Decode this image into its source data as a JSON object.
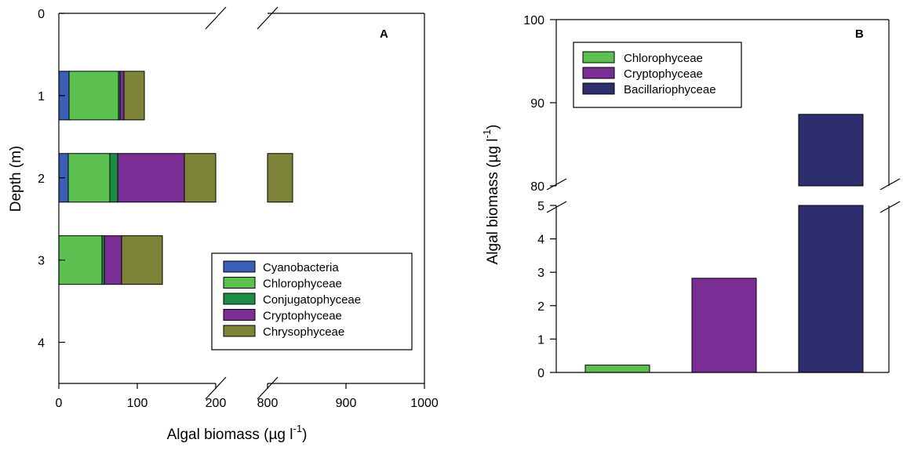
{
  "chart_data": [
    {
      "type": "bar",
      "orientation": "horizontal-stacked",
      "panel_letter": "A",
      "xlabel": "Algal biomass (µg l",
      "xlabel_superscript": "-1",
      "xlabel_suffix": ")",
      "ylabel": "Depth (m)",
      "ylim": [
        0,
        4.5
      ],
      "y_ticks": [
        "0",
        "1",
        "2",
        "3",
        "4"
      ],
      "x_axis_break": {
        "lower_range": [
          0,
          200
        ],
        "upper_range": [
          800,
          1000
        ]
      },
      "x_ticks": [
        "0",
        "100",
        "200",
        "800",
        "900",
        "1000"
      ],
      "categories": [
        "1",
        "2",
        "3"
      ],
      "series": [
        {
          "name": "Cyanobacteria",
          "color": "#3b5fb5",
          "values": [
            13,
            12,
            0
          ]
        },
        {
          "name": "Chlorophyceae",
          "color": "#5cc050",
          "values": [
            63,
            53,
            55
          ]
        },
        {
          "name": "Conjugatophyceae",
          "color": "#1e8c46",
          "values": [
            2,
            10,
            3
          ]
        },
        {
          "name": "Cryptophyceae",
          "color": "#7b2d96",
          "values": [
            5,
            85,
            22
          ]
        },
        {
          "name": "Chrysophyceae",
          "color": "#7d8437",
          "values": [
            26,
            672,
            52
          ]
        }
      ],
      "legend_position": "bottom-right"
    },
    {
      "type": "bar",
      "panel_letter": "B",
      "ylabel": "Algal biomass (µg l",
      "ylabel_superscript": "-1",
      "ylabel_suffix": ")",
      "y_axis_break": {
        "lower_range": [
          0,
          5
        ],
        "upper_range": [
          80,
          100
        ]
      },
      "y_ticks_lower": [
        "0",
        "1",
        "2",
        "3",
        "4",
        "5"
      ],
      "y_ticks_upper": [
        "80",
        "90",
        "100"
      ],
      "series": [
        {
          "name": "Chlorophyceae",
          "color": "#5cc050",
          "value": 0.22
        },
        {
          "name": "Cryptophyceae",
          "color": "#7b2d96",
          "value": 2.82
        },
        {
          "name": "Bacillariophyceae",
          "color": "#2e2d6e",
          "value": 88.6
        }
      ],
      "legend_position": "top-left"
    }
  ]
}
